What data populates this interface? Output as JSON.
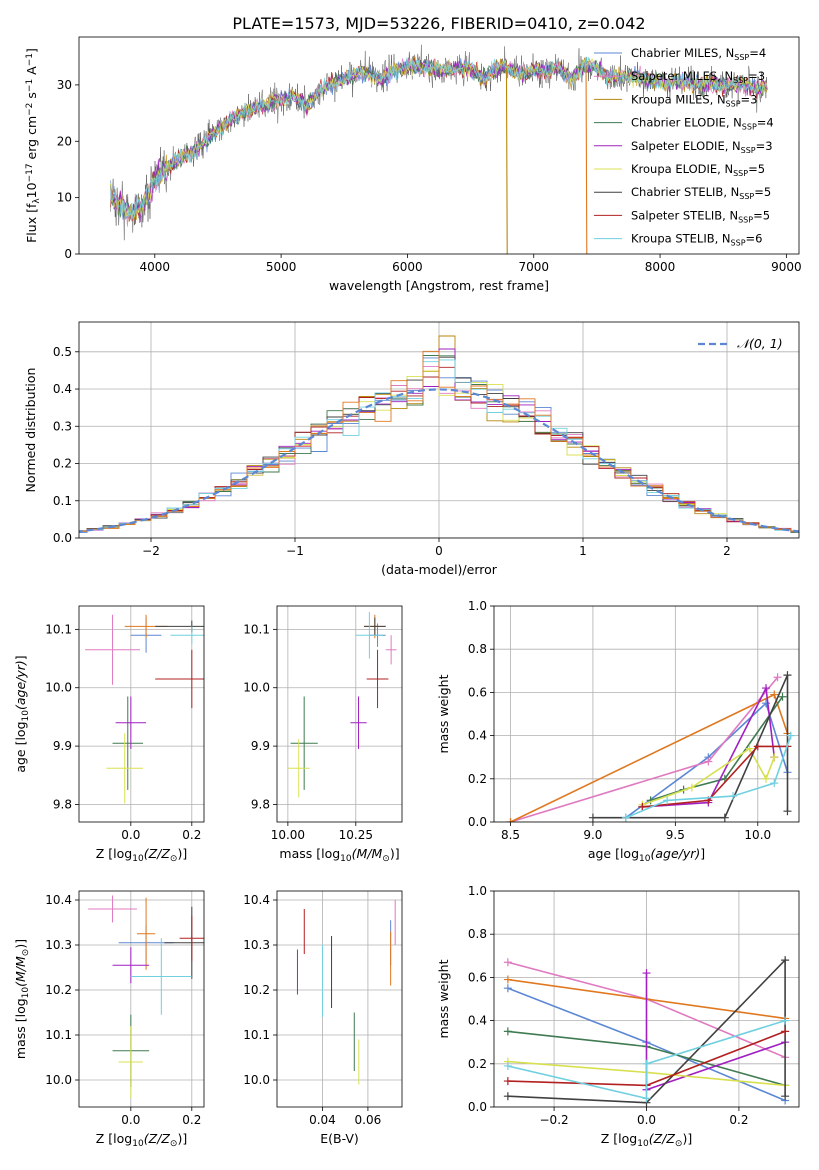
{
  "figure_title": "PLATE=1573, MJD=53226, FIBERID=0410, z=0.042",
  "colors": {
    "chabrier_miles": "#5b87d4",
    "salpeter_miles": "#e07ac0",
    "kroupa_miles": "#b8860b",
    "chabrier_elodie": "#3f7a50",
    "salpeter_elodie": "#a020c0",
    "kroupa_elodie": "#d8e050",
    "chabrier_stelib": "#404040",
    "salpeter_stelib": "#b22020",
    "kroupa_stelib": "#70d0e0",
    "gaussian": "#5b87d4",
    "extra_orange": "#e07820"
  },
  "chart_data": [
    {
      "id": "spectrum",
      "type": "line",
      "xlabel": "wavelength [Angstrom, rest frame]",
      "ylabel": "Flux [f",
      "xlim": [
        3400,
        9100
      ],
      "ylim": [
        0,
        38.5
      ],
      "xticks": [
        4000,
        5000,
        6000,
        7000,
        8000,
        9000
      ],
      "yticks": [
        0,
        10,
        20,
        30
      ],
      "legend": [
        {
          "label": "Chabrier MILES, N",
          "sub": "SSP",
          "suffix": "=4",
          "color_key": "chabrier_miles"
        },
        {
          "label": "Salpeter MILES, N",
          "sub": "SSP",
          "suffix": "=3",
          "color_key": "salpeter_miles"
        },
        {
          "label": "Kroupa MILES, N",
          "sub": "SSP",
          "suffix": "=3",
          "color_key": "kroupa_miles"
        },
        {
          "label": "Chabrier ELODIE, N",
          "sub": "SSP",
          "suffix": "=4",
          "color_key": "chabrier_elodie"
        },
        {
          "label": "Salpeter ELODIE, N",
          "sub": "SSP",
          "suffix": "=3",
          "color_key": "salpeter_elodie"
        },
        {
          "label": "Kroupa ELODIE, N",
          "sub": "SSP",
          "suffix": "=5",
          "color_key": "kroupa_elodie"
        },
        {
          "label": "Chabrier STELIB, N",
          "sub": "SSP",
          "suffix": "=5",
          "color_key": "chabrier_stelib"
        },
        {
          "label": "Salpeter STELIB, N",
          "sub": "SSP",
          "suffix": "=5",
          "color_key": "salpeter_stelib"
        },
        {
          "label": "Kroupa STELIB, N",
          "sub": "SSP",
          "suffix": "=6",
          "color_key": "kroupa_stelib"
        }
      ],
      "continuum": [
        [
          3650,
          11
        ],
        [
          3700,
          9
        ],
        [
          3800,
          7.5
        ],
        [
          3900,
          8.5
        ],
        [
          4000,
          13
        ],
        [
          4100,
          15.5
        ],
        [
          4200,
          17
        ],
        [
          4300,
          18
        ],
        [
          4400,
          20
        ],
        [
          4500,
          22
        ],
        [
          4600,
          24
        ],
        [
          4700,
          25
        ],
        [
          4800,
          26
        ],
        [
          4900,
          26.5
        ],
        [
          5000,
          27.5
        ],
        [
          5100,
          28
        ],
        [
          5200,
          26
        ],
        [
          5300,
          29
        ],
        [
          5400,
          30
        ],
        [
          5500,
          31
        ],
        [
          5600,
          32
        ],
        [
          5700,
          32
        ],
        [
          5800,
          31
        ],
        [
          5900,
          32.5
        ],
        [
          6000,
          33.5
        ],
        [
          6100,
          33
        ],
        [
          6200,
          33
        ],
        [
          6300,
          32.5
        ],
        [
          6400,
          33
        ],
        [
          6500,
          33
        ],
        [
          6600,
          31
        ],
        [
          6700,
          33
        ],
        [
          6800,
          33
        ],
        [
          6900,
          32
        ],
        [
          7000,
          32.5
        ],
        [
          7100,
          32.5
        ],
        [
          7200,
          33
        ],
        [
          7300,
          31
        ],
        [
          7400,
          33.5
        ],
        [
          7500,
          33
        ],
        [
          7600,
          31.5
        ],
        [
          7800,
          31.5
        ],
        [
          8000,
          30.5
        ],
        [
          8200,
          30.5
        ],
        [
          8400,
          30
        ],
        [
          8600,
          30
        ],
        [
          8800,
          29.5
        ]
      ],
      "dropouts": [
        {
          "x": 6790,
          "color_key": "kroupa_miles"
        },
        {
          "x": 7420,
          "color_key": "extra_orange"
        }
      ]
    },
    {
      "id": "residuals",
      "type": "histogram",
      "xlabel": "(data-model)/error",
      "ylabel": "Normed distribution",
      "xlim": [
        -2.5,
        2.5
      ],
      "ylim": [
        0,
        0.58
      ],
      "xticks": [
        -2,
        -1,
        0,
        1,
        2
      ],
      "yticks": [
        0.0,
        0.1,
        0.2,
        0.3,
        0.4,
        0.5
      ],
      "bin_width": 0.1111,
      "legend": [
        {
          "label": "𝒩(0, 1)",
          "color_key": "gaussian"
        }
      ]
    },
    {
      "id": "age_vs_Z",
      "type": "scatter",
      "xlabel": "Z [log",
      "ylabel": "age  [log",
      "xlim": [
        -0.17,
        0.24
      ],
      "ylim": [
        9.77,
        10.14
      ],
      "xticks": [
        0.0,
        0.2
      ],
      "yticks": [
        9.8,
        9.9,
        10.0,
        10.1
      ],
      "points": [
        {
          "x": 0.05,
          "y": 10.09,
          "xerr": 0.05,
          "yerr": 0.03,
          "color_key": "chabrier_miles"
        },
        {
          "x": -0.06,
          "y": 10.065,
          "xerr": 0.09,
          "yerr": 0.06,
          "color_key": "salpeter_miles"
        },
        {
          "x": 0.05,
          "y": 10.105,
          "xerr": 0.07,
          "yerr": 0.02,
          "color_key": "extra_orange"
        },
        {
          "x": -0.01,
          "y": 9.905,
          "xerr": 0.05,
          "yerr": 0.08,
          "color_key": "chabrier_elodie"
        },
        {
          "x": 0.0,
          "y": 9.94,
          "xerr": 0.05,
          "yerr": 0.045,
          "color_key": "salpeter_elodie"
        },
        {
          "x": -0.02,
          "y": 9.862,
          "xerr": 0.06,
          "yerr": 0.06,
          "color_key": "kroupa_elodie"
        },
        {
          "x": 0.2,
          "y": 10.105,
          "xerr": 0.12,
          "yerr": 0.01,
          "color_key": "chabrier_stelib"
        },
        {
          "x": 0.2,
          "y": 10.015,
          "xerr": 0.12,
          "yerr": 0.05,
          "color_key": "salpeter_stelib"
        },
        {
          "x": 0.2,
          "y": 10.09,
          "xerr": 0.07,
          "yerr": 0.015,
          "color_key": "kroupa_stelib"
        }
      ]
    },
    {
      "id": "age_vs_mass",
      "type": "scatter",
      "xlabel": "mass [log",
      "ylabel": "",
      "xlim": [
        9.96,
        10.42
      ],
      "ylim": [
        9.77,
        10.14
      ],
      "xticks": [
        10.0,
        10.25
      ],
      "yticks": [
        9.8,
        9.9,
        10.0,
        10.1
      ],
      "points": [
        {
          "x": 10.33,
          "y": 10.09,
          "xerr": 0.03,
          "yerr": 0.02,
          "color_key": "chabrier_miles"
        },
        {
          "x": 10.38,
          "y": 10.065,
          "xerr": 0.02,
          "yerr": 0.025,
          "color_key": "salpeter_miles"
        },
        {
          "x": 10.32,
          "y": 10.105,
          "xerr": 0.04,
          "yerr": 0.02,
          "color_key": "extra_orange"
        },
        {
          "x": 10.06,
          "y": 9.905,
          "xerr": 0.05,
          "yerr": 0.08,
          "color_key": "chabrier_elodie"
        },
        {
          "x": 10.26,
          "y": 9.94,
          "xerr": 0.03,
          "yerr": 0.045,
          "color_key": "salpeter_elodie"
        },
        {
          "x": 10.04,
          "y": 9.862,
          "xerr": 0.04,
          "yerr": 0.05,
          "color_key": "kroupa_elodie"
        },
        {
          "x": 10.32,
          "y": 10.105,
          "xerr": 0.04,
          "yerr": 0.015,
          "color_key": "chabrier_stelib"
        },
        {
          "x": 10.33,
          "y": 10.015,
          "xerr": 0.04,
          "yerr": 0.05,
          "color_key": "salpeter_stelib"
        },
        {
          "x": 10.3,
          "y": 10.09,
          "xerr": 0.05,
          "yerr": 0.04,
          "color_key": "kroupa_stelib"
        }
      ]
    },
    {
      "id": "weight_vs_age",
      "type": "line",
      "xlabel": "age  [log",
      "ylabel": "mass weight",
      "xlim": [
        8.4,
        10.25
      ],
      "ylim": [
        0,
        1.0
      ],
      "xticks": [
        8.5,
        9.0,
        9.5,
        10.0
      ],
      "yticks": [
        0.0,
        0.2,
        0.4,
        0.6,
        0.8,
        1.0
      ],
      "series": [
        {
          "color_key": "chabrier_miles",
          "points": [
            [
              9.2,
              0.02
            ],
            [
              9.7,
              0.3
            ],
            [
              10.05,
              0.55
            ],
            [
              10.18,
              0.23
            ]
          ]
        },
        {
          "color_key": "salpeter_miles",
          "points": [
            [
              8.5,
              0.0
            ],
            [
              9.7,
              0.28
            ],
            [
              10.12,
              0.67
            ]
          ]
        },
        {
          "color_key": "extra_orange",
          "points": [
            [
              8.5,
              0.0
            ],
            [
              10.1,
              0.59
            ],
            [
              10.18,
              0.41
            ]
          ]
        },
        {
          "color_key": "chabrier_elodie",
          "points": [
            [
              9.35,
              0.1
            ],
            [
              9.55,
              0.15
            ],
            [
              9.8,
              0.2
            ],
            [
              10.15,
              0.58
            ]
          ]
        },
        {
          "color_key": "salpeter_elodie",
          "points": [
            [
              9.3,
              0.07
            ],
            [
              9.7,
              0.09
            ],
            [
              10.05,
              0.62
            ],
            [
              10.1,
              0.3
            ]
          ]
        },
        {
          "color_key": "kroupa_elodie",
          "points": [
            [
              9.3,
              0.08
            ],
            [
              9.6,
              0.16
            ],
            [
              9.95,
              0.34
            ],
            [
              10.05,
              0.2
            ],
            [
              10.1,
              0.3
            ]
          ]
        },
        {
          "color_key": "chabrier_stelib",
          "points": [
            [
              9.0,
              0.02
            ],
            [
              9.8,
              0.02
            ],
            [
              10.18,
              0.68
            ],
            [
              10.18,
              0.05
            ]
          ]
        },
        {
          "color_key": "salpeter_stelib",
          "points": [
            [
              9.3,
              0.07
            ],
            [
              9.7,
              0.1
            ],
            [
              10.0,
              0.35
            ],
            [
              10.18,
              0.35
            ]
          ]
        },
        {
          "color_key": "kroupa_stelib",
          "points": [
            [
              9.2,
              0.02
            ],
            [
              9.45,
              0.1
            ],
            [
              9.85,
              0.12
            ],
            [
              10.1,
              0.18
            ],
            [
              10.2,
              0.4
            ]
          ]
        }
      ]
    },
    {
      "id": "mass_vs_Z",
      "type": "scatter",
      "xlabel": "Z [log",
      "ylabel": "mass [log",
      "xlim": [
        -0.17,
        0.24
      ],
      "ylim": [
        9.94,
        10.42
      ],
      "xticks": [
        0.0,
        0.2
      ],
      "yticks": [
        10.0,
        10.1,
        10.2,
        10.3,
        10.4
      ],
      "points": [
        {
          "x": 0.05,
          "y": 10.305,
          "xerr": 0.09,
          "yerr": 0.04,
          "color_key": "chabrier_miles"
        },
        {
          "x": -0.06,
          "y": 10.38,
          "xerr": 0.08,
          "yerr": 0.03,
          "color_key": "salpeter_miles"
        },
        {
          "x": 0.05,
          "y": 10.325,
          "xerr": 0.03,
          "yerr": 0.08,
          "color_key": "extra_orange"
        },
        {
          "x": 0.0,
          "y": 10.065,
          "xerr": 0.06,
          "yerr": 0.08,
          "color_key": "chabrier_elodie"
        },
        {
          "x": 0.0,
          "y": 10.255,
          "xerr": 0.06,
          "yerr": 0.04,
          "color_key": "salpeter_elodie"
        },
        {
          "x": 0.0,
          "y": 10.04,
          "xerr": 0.04,
          "yerr": 0.08,
          "color_key": "kroupa_elodie"
        },
        {
          "x": 0.2,
          "y": 10.305,
          "xerr": 0.09,
          "yerr": 0.08,
          "color_key": "chabrier_stelib"
        },
        {
          "x": 0.2,
          "y": 10.315,
          "xerr": 0.04,
          "yerr": 0.05,
          "color_key": "salpeter_stelib"
        },
        {
          "x": 0.1,
          "y": 10.23,
          "xerr": 0.1,
          "yerr": 0.085,
          "color_key": "kroupa_stelib"
        }
      ]
    },
    {
      "id": "mass_vs_ebv",
      "type": "scatter",
      "xlabel": "E(B-V)",
      "ylabel": "",
      "xlim": [
        0.02,
        0.075
      ],
      "ylim": [
        9.94,
        10.42
      ],
      "xticks": [
        0.04,
        0.06
      ],
      "yticks": [
        10.0,
        10.1,
        10.2,
        10.3,
        10.4
      ],
      "points": [
        {
          "x": 0.07,
          "y": 10.305,
          "xerr": 0.0,
          "yerr": 0.05,
          "color_key": "chabrier_miles"
        },
        {
          "x": 0.072,
          "y": 10.35,
          "xerr": 0.0,
          "yerr": 0.05,
          "color_key": "salpeter_miles"
        },
        {
          "x": 0.07,
          "y": 10.27,
          "xerr": 0.0,
          "yerr": 0.06,
          "color_key": "extra_orange"
        },
        {
          "x": 0.054,
          "y": 10.085,
          "xerr": 0.0,
          "yerr": 0.065,
          "color_key": "chabrier_elodie"
        },
        {
          "x": 0.029,
          "y": 10.24,
          "xerr": 0.0,
          "yerr": 0.05,
          "color_key": "salpeter_elodie"
        },
        {
          "x": 0.056,
          "y": 10.04,
          "xerr": 0.0,
          "yerr": 0.05,
          "color_key": "kroupa_elodie"
        },
        {
          "x": 0.044,
          "y": 10.24,
          "xerr": 0.0,
          "yerr": 0.08,
          "color_key": "chabrier_stelib"
        },
        {
          "x": 0.032,
          "y": 10.33,
          "xerr": 0.0,
          "yerr": 0.05,
          "color_key": "salpeter_stelib"
        },
        {
          "x": 0.04,
          "y": 10.22,
          "xerr": 0.0,
          "yerr": 0.08,
          "color_key": "kroupa_stelib"
        }
      ]
    },
    {
      "id": "weight_vs_Z",
      "type": "line",
      "xlabel": "Z [log",
      "ylabel": "mass weight",
      "xlim": [
        -0.33,
        0.33
      ],
      "ylim": [
        0,
        1.0
      ],
      "xticks": [
        -0.2,
        0.0,
        0.2
      ],
      "yticks": [
        0.0,
        0.2,
        0.4,
        0.6,
        0.8,
        1.0
      ],
      "series": [
        {
          "color_key": "chabrier_miles",
          "points": [
            [
              -0.3,
              0.55
            ],
            [
              0.0,
              0.3
            ],
            [
              0.3,
              0.03
            ]
          ]
        },
        {
          "color_key": "salpeter_miles",
          "points": [
            [
              -0.3,
              0.67
            ],
            [
              0.0,
              0.5
            ],
            [
              0.3,
              0.23
            ]
          ]
        },
        {
          "color_key": "extra_orange",
          "points": [
            [
              -0.3,
              0.59
            ],
            [
              0.3,
              0.41
            ]
          ]
        },
        {
          "color_key": "chabrier_elodie",
          "points": [
            [
              -0.3,
              0.35
            ],
            [
              0.0,
              0.28
            ],
            [
              0.3,
              0.1
            ]
          ]
        },
        {
          "color_key": "salpeter_elodie",
          "points": [
            [
              0.0,
              0.62
            ],
            [
              0.0,
              0.08
            ],
            [
              0.3,
              0.3
            ]
          ]
        },
        {
          "color_key": "kroupa_elodie",
          "points": [
            [
              -0.3,
              0.21
            ],
            [
              0.0,
              0.16
            ],
            [
              0.3,
              0.1
            ]
          ]
        },
        {
          "color_key": "chabrier_stelib",
          "points": [
            [
              -0.3,
              0.05
            ],
            [
              0.0,
              0.02
            ],
            [
              0.3,
              0.68
            ],
            [
              0.3,
              0.05
            ]
          ]
        },
        {
          "color_key": "salpeter_stelib",
          "points": [
            [
              -0.3,
              0.12
            ],
            [
              0.0,
              0.1
            ],
            [
              0.3,
              0.35
            ]
          ]
        },
        {
          "color_key": "kroupa_stelib",
          "points": [
            [
              -0.3,
              0.19
            ],
            [
              0.0,
              0.04
            ],
            [
              0.0,
              0.2
            ],
            [
              0.3,
              0.4
            ]
          ]
        }
      ]
    }
  ]
}
